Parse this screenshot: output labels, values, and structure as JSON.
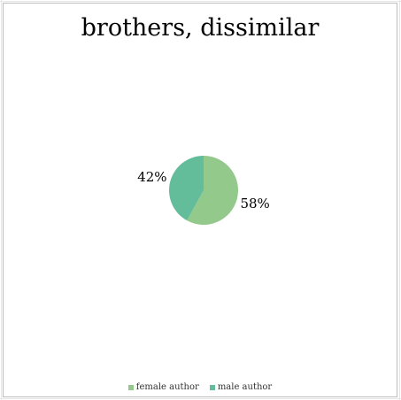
{
  "chart_data": {
    "type": "pie",
    "title": "brothers, dissimilar",
    "categories": [
      "female author",
      "male author"
    ],
    "values": [
      58,
      42
    ],
    "labels": [
      "58%",
      "42%"
    ],
    "colors": [
      "#93c98a",
      "#63bd9b"
    ],
    "legend_position": "bottom"
  }
}
